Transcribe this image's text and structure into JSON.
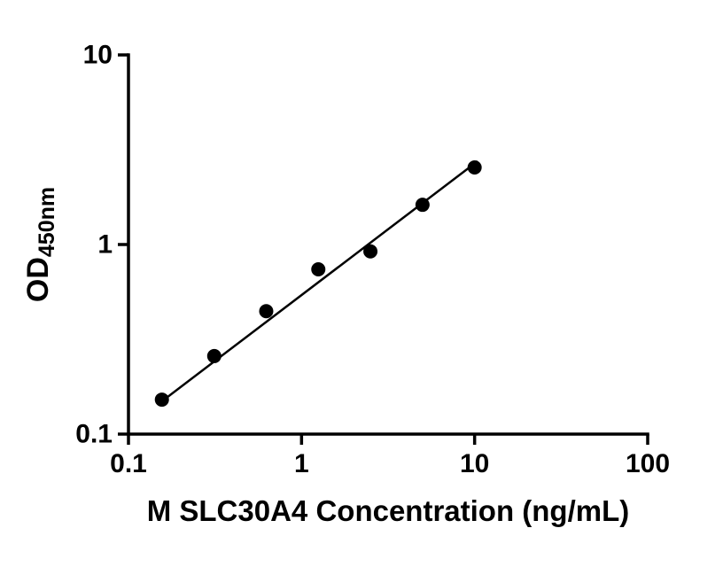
{
  "chart_data": {
    "type": "scatter",
    "title": "",
    "xlabel": "M SLC30A4 Concentration (ng/mL)",
    "ylabel_main": "OD",
    "ylabel_sub": "450nm",
    "xscale": "log",
    "yscale": "log",
    "xlim": [
      0.1,
      100
    ],
    "ylim": [
      0.1,
      10
    ],
    "x_ticks": [
      0.1,
      1,
      10,
      100
    ],
    "x_tick_labels": [
      "0.1",
      "1",
      "10",
      "100"
    ],
    "y_ticks": [
      0.1,
      1,
      10
    ],
    "y_tick_labels": [
      "0.1",
      "1",
      "10"
    ],
    "grid": false,
    "legend": "none",
    "x": [
      0.156,
      0.313,
      0.625,
      1.25,
      2.5,
      5,
      10
    ],
    "y": [
      0.152,
      0.258,
      0.445,
      0.74,
      0.92,
      1.62,
      2.55
    ],
    "trendline": {
      "x": [
        0.15,
        10.4
      ],
      "y": [
        0.145,
        2.75
      ]
    },
    "colors": {
      "background": "#ffffff",
      "axis": "#000000",
      "points": "#000000",
      "line": "#000000",
      "text": "#000000"
    }
  }
}
